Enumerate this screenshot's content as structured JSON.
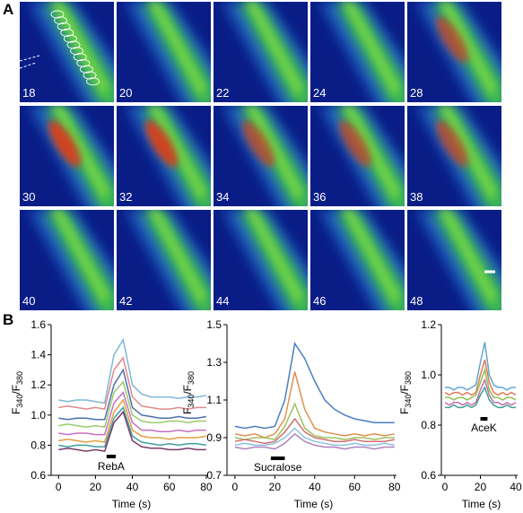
{
  "panel_labels": [
    "A",
    "B"
  ],
  "tiles": [
    18,
    20,
    22,
    24,
    28,
    30,
    32,
    34,
    36,
    38,
    40,
    42,
    44,
    46,
    48
  ],
  "chart_data": [
    {
      "type": "line",
      "xlabel": "Time (s)",
      "ylabel": [
        "F",
        "340",
        "/F",
        "380"
      ],
      "x": [
        0,
        5,
        10,
        15,
        20,
        25,
        30,
        35,
        40,
        45,
        50,
        55,
        60,
        65,
        70,
        75,
        80
      ],
      "xlim": [
        -4,
        81
      ],
      "ylim": [
        0.6,
        1.6
      ],
      "xticks": [
        0,
        20,
        40,
        60,
        80
      ],
      "yticks": [
        0.6,
        0.8,
        {
          "value": 1,
          "label": "1.0"
        },
        1.2,
        1.4,
        1.6
      ],
      "stimulus": {
        "label": "RebA",
        "start": 26,
        "end": 31
      },
      "series": [
        {
          "color": "#7fb8d8",
          "values": [
            1.1,
            1.09,
            1.1,
            1.1,
            1.09,
            1.08,
            1.4,
            1.5,
            1.2,
            1.14,
            1.12,
            1.12,
            1.12,
            1.11,
            1.12,
            1.12,
            1.13
          ]
        },
        {
          "color": "#e08a8a",
          "values": [
            1.05,
            1.06,
            1.05,
            1.04,
            1.05,
            1.04,
            1.3,
            1.38,
            1.12,
            1.06,
            1.05,
            1.04,
            1.04,
            1.05,
            1.04,
            1.05,
            1.05
          ]
        },
        {
          "color": "#4a6fb0",
          "values": [
            0.98,
            0.97,
            0.98,
            0.98,
            0.97,
            0.97,
            1.2,
            1.3,
            1.05,
            1.0,
            0.99,
            0.98,
            0.98,
            0.99,
            0.98,
            0.98,
            0.99
          ]
        },
        {
          "color": "#9acb6a",
          "values": [
            0.93,
            0.94,
            0.93,
            0.92,
            0.93,
            0.92,
            1.15,
            1.22,
            1.0,
            0.96,
            0.95,
            0.95,
            0.96,
            0.96,
            0.95,
            0.96,
            0.96
          ]
        },
        {
          "color": "#c86fc0",
          "values": [
            0.88,
            0.87,
            0.88,
            0.88,
            0.87,
            0.87,
            1.08,
            1.15,
            0.95,
            0.9,
            0.9,
            0.89,
            0.89,
            0.9,
            0.89,
            0.9,
            0.9
          ]
        },
        {
          "color": "#e0a040",
          "values": [
            0.83,
            0.84,
            0.83,
            0.82,
            0.83,
            0.82,
            1.02,
            1.1,
            0.9,
            0.86,
            0.85,
            0.85,
            0.84,
            0.85,
            0.85,
            0.85,
            0.86
          ]
        },
        {
          "color": "#40a0a0",
          "values": [
            0.8,
            0.79,
            0.8,
            0.8,
            0.79,
            0.79,
            0.98,
            1.05,
            0.86,
            0.82,
            0.81,
            0.8,
            0.81,
            0.8,
            0.81,
            0.81,
            0.8
          ]
        },
        {
          "color": "#7a3a6a",
          "values": [
            0.77,
            0.78,
            0.77,
            0.76,
            0.77,
            0.76,
            0.95,
            1.02,
            0.83,
            0.79,
            0.78,
            0.78,
            0.77,
            0.77,
            0.78,
            0.77,
            0.77
          ]
        }
      ]
    },
    {
      "type": "line",
      "xlabel": "Time (s)",
      "ylabel": [
        "F",
        "340",
        "/F",
        "380"
      ],
      "x": [
        0,
        5,
        10,
        15,
        20,
        25,
        30,
        35,
        40,
        45,
        50,
        55,
        60,
        65,
        70,
        75,
        80
      ],
      "xlim": [
        -4,
        81
      ],
      "ylim": [
        0.7,
        1.5
      ],
      "xticks": [
        0,
        20,
        40,
        60,
        80
      ],
      "yticks": [
        0.7,
        0.9,
        1.1,
        1.3,
        1.5
      ],
      "stimulus": {
        "label": "Sucralose",
        "start": 18,
        "end": 25
      },
      "series": [
        {
          "color": "#4a7fc0",
          "values": [
            0.96,
            0.95,
            0.96,
            0.95,
            0.96,
            1.1,
            1.4,
            1.32,
            1.2,
            1.1,
            1.05,
            1.02,
            1.0,
            0.99,
            0.98,
            0.98,
            0.98
          ]
        },
        {
          "color": "#e09050",
          "values": [
            0.92,
            0.91,
            0.92,
            0.9,
            0.92,
            1.0,
            1.25,
            1.05,
            0.95,
            0.93,
            0.92,
            0.91,
            0.92,
            0.91,
            0.92,
            0.91,
            0.92
          ]
        },
        {
          "color": "#a0c060",
          "values": [
            0.9,
            0.89,
            0.9,
            0.9,
            0.89,
            0.96,
            1.08,
            0.95,
            0.91,
            0.9,
            0.9,
            0.89,
            0.9,
            0.9,
            0.89,
            0.9,
            0.9
          ]
        },
        {
          "color": "#d07070",
          "values": [
            0.88,
            0.89,
            0.88,
            0.87,
            0.88,
            0.93,
            1.0,
            0.93,
            0.9,
            0.89,
            0.88,
            0.88,
            0.89,
            0.88,
            0.88,
            0.88,
            0.89
          ]
        },
        {
          "color": "#8ac0e0",
          "values": [
            0.86,
            0.87,
            0.86,
            0.86,
            0.87,
            0.9,
            0.95,
            0.9,
            0.88,
            0.87,
            0.86,
            0.86,
            0.87,
            0.86,
            0.86,
            0.87,
            0.86
          ]
        },
        {
          "color": "#b080c0",
          "values": [
            0.85,
            0.84,
            0.85,
            0.85,
            0.84,
            0.87,
            0.92,
            0.88,
            0.86,
            0.85,
            0.85,
            0.84,
            0.85,
            0.85,
            0.84,
            0.85,
            0.85
          ]
        }
      ]
    },
    {
      "type": "line",
      "xlabel": "Time (s)",
      "ylabel": [
        "F",
        "340",
        "/F",
        "380"
      ],
      "x": [
        0,
        2.5,
        5,
        7.5,
        10,
        12.5,
        15,
        17.5,
        20,
        22.5,
        25,
        27.5,
        30,
        32.5,
        35,
        37.5,
        40
      ],
      "xlim": [
        -2,
        41
      ],
      "ylim": [
        0.6,
        1.2
      ],
      "xticks": [
        0,
        20,
        40
      ],
      "yticks": [
        0.6,
        0.8,
        {
          "value": 1,
          "label": "1.0"
        },
        1.2
      ],
      "stimulus": {
        "label": "AceK",
        "start": 20,
        "end": 24
      },
      "series": [
        {
          "color": "#5fa8d0",
          "values": [
            0.95,
            0.95,
            0.94,
            0.95,
            0.95,
            0.94,
            0.95,
            0.96,
            1.05,
            1.13,
            1.0,
            0.96,
            0.95,
            0.95,
            0.94,
            0.95,
            0.95
          ]
        },
        {
          "color": "#e07a5a",
          "values": [
            0.93,
            0.92,
            0.93,
            0.93,
            0.92,
            0.93,
            0.92,
            0.93,
            1.0,
            1.06,
            0.97,
            0.93,
            0.92,
            0.93,
            0.92,
            0.93,
            0.92
          ]
        },
        {
          "color": "#90c050",
          "values": [
            0.91,
            0.91,
            0.9,
            0.91,
            0.91,
            0.9,
            0.91,
            0.92,
            0.97,
            1.02,
            0.94,
            0.91,
            0.91,
            0.9,
            0.91,
            0.91,
            0.9
          ]
        },
        {
          "color": "#c070b0",
          "values": [
            0.89,
            0.88,
            0.89,
            0.89,
            0.88,
            0.89,
            0.88,
            0.89,
            0.94,
            0.98,
            0.92,
            0.89,
            0.89,
            0.88,
            0.89,
            0.88,
            0.89
          ]
        },
        {
          "color": "#40a090",
          "values": [
            0.87,
            0.87,
            0.88,
            0.87,
            0.87,
            0.88,
            0.87,
            0.88,
            0.92,
            0.95,
            0.9,
            0.88,
            0.87,
            0.87,
            0.88,
            0.87,
            0.87
          ]
        }
      ]
    }
  ]
}
